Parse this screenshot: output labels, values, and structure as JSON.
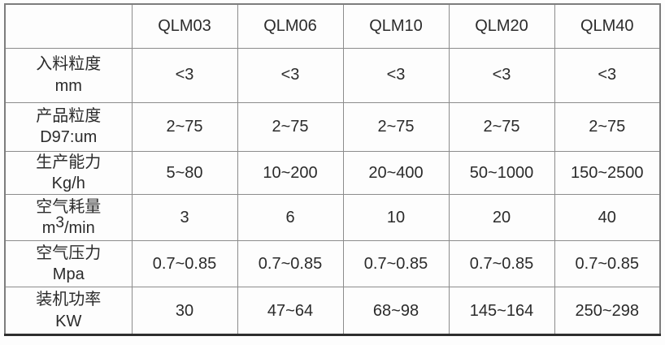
{
  "table": {
    "header": {
      "corner": "",
      "models": [
        "QLM03",
        "QLM06",
        "QLM10",
        "QLM20",
        "QLM40"
      ]
    },
    "rows": [
      {
        "name": "入料粒度",
        "unit": "mm",
        "values": [
          "<3",
          "<3",
          "<3",
          "<3",
          "<3"
        ]
      },
      {
        "name": "产品粒度",
        "unit": "D97:um",
        "values": [
          "2~75",
          "2~75",
          "2~75",
          "2~75",
          "2~75"
        ]
      },
      {
        "name": "生产能力",
        "unit": "Kg/h",
        "values": [
          "5~80",
          "10~200",
          "20~400",
          "50~1000",
          "150~2500"
        ]
      },
      {
        "name": "空气耗量",
        "unit_prefix": "m",
        "unit_sup": "3",
        "unit_suffix": "/min",
        "values": [
          "3",
          "6",
          "10",
          "20",
          "40"
        ]
      },
      {
        "name": "空气压力",
        "unit": "Mpa",
        "values": [
          "0.7~0.85",
          "0.7~0.85",
          "0.7~0.85",
          "0.7~0.85",
          "0.7~0.85"
        ]
      },
      {
        "name": "装机功率",
        "unit": "KW",
        "values": [
          "30",
          "47~64",
          "68~98",
          "145~164",
          "250~298"
        ]
      }
    ]
  }
}
